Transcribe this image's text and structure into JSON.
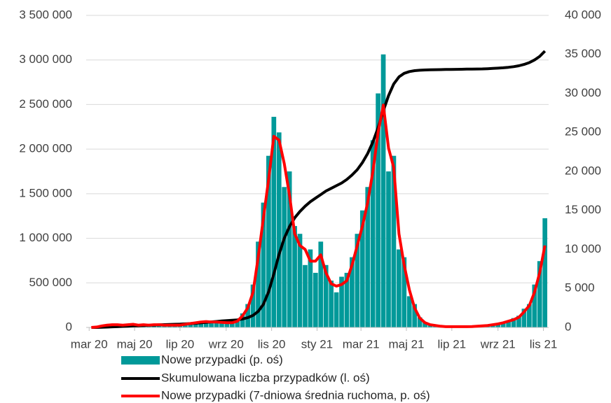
{
  "chart_data": {
    "type": "combo",
    "x": [
      3,
      10,
      17,
      24,
      31,
      38,
      45,
      52,
      59,
      66,
      73,
      80,
      87,
      94,
      101,
      108,
      115,
      122,
      129,
      136,
      143,
      150,
      157,
      164,
      171,
      178,
      185,
      192,
      199,
      206,
      213,
      220,
      227,
      234,
      241,
      248,
      255,
      262,
      269,
      276,
      283,
      290,
      297,
      304,
      311,
      318,
      325,
      332,
      339,
      346,
      353,
      360,
      367,
      374,
      381,
      388,
      395,
      402,
      409,
      416,
      423,
      430,
      437,
      444,
      451,
      458,
      465,
      472,
      479,
      486,
      493,
      500,
      507,
      514,
      521,
      528,
      535,
      542,
      549,
      556,
      563,
      570,
      577,
      584,
      591,
      598,
      605,
      612
    ],
    "xlim": [
      -4,
      617
    ],
    "xticks": [
      {
        "value": 0,
        "label": "mar 20"
      },
      {
        "value": 61,
        "label": "maj 20"
      },
      {
        "value": 122,
        "label": "lip 20"
      },
      {
        "value": 184,
        "label": "wrz 20"
      },
      {
        "value": 245,
        "label": "lis 20"
      },
      {
        "value": 306,
        "label": "sty 21"
      },
      {
        "value": 365,
        "label": "mar 21"
      },
      {
        "value": 426,
        "label": "maj 21"
      },
      {
        "value": 487,
        "label": "lip 21"
      },
      {
        "value": 549,
        "label": "wrz 21"
      },
      {
        "value": 610,
        "label": "lis 21"
      }
    ],
    "ylim": [
      0,
      3500000
    ],
    "yticks": [
      0,
      {
        "value": 500000,
        "label": "500 000"
      },
      {
        "value": 1000000,
        "label": "1 000 000"
      },
      {
        "value": 1500000,
        "label": "1 500 000"
      },
      {
        "value": 2000000,
        "label": "2 000 000"
      },
      {
        "value": 2500000,
        "label": "2 500 000"
      },
      {
        "value": 3000000,
        "label": "3 000 000"
      },
      {
        "value": 3500000,
        "label": "3 500 000"
      }
    ],
    "y2lim": [
      0,
      40000
    ],
    "y2ticks": [
      0,
      {
        "value": 5000,
        "label": "5 000"
      },
      {
        "value": 10000,
        "label": "10 000"
      },
      {
        "value": 15000,
        "label": "15 000"
      },
      {
        "value": 20000,
        "label": "20 000"
      },
      {
        "value": 25000,
        "label": "25 000"
      },
      {
        "value": 30000,
        "label": "30 000"
      },
      {
        "value": 35000,
        "label": "35 000"
      },
      {
        "value": 40000,
        "label": "40 000"
      }
    ],
    "grid": true,
    "legend": "bottom",
    "series": [
      {
        "name": "Nowe przypadki (p. oś)",
        "kind": "bar",
        "axis": "y2",
        "color": "#009999",
        "values": [
          0,
          100,
          250,
          350,
          400,
          300,
          350,
          400,
          450,
          250,
          400,
          350,
          300,
          400,
          250,
          350,
          300,
          350,
          450,
          600,
          700,
          800,
          900,
          600,
          800,
          700,
          500,
          700,
          1000,
          1800,
          3000,
          5500,
          11000,
          16000,
          22000,
          27000,
          25000,
          18000,
          20000,
          13000,
          12000,
          8000,
          10000,
          7000,
          11000,
          8000,
          6000,
          4500,
          6500,
          7000,
          9000,
          12000,
          15000,
          18000,
          24000,
          30000,
          35000,
          20000,
          22000,
          10000,
          9000,
          4000,
          3000,
          1300,
          700,
          300,
          300,
          200,
          100,
          100,
          150,
          100,
          100,
          150,
          200,
          250,
          300,
          400,
          500,
          700,
          900,
          1200,
          1500,
          2400,
          3000,
          5500,
          8500,
          14000
        ]
      },
      {
        "name": "Skumulowana liczba przypadków (l. oś)",
        "kind": "line",
        "axis": "y",
        "color": "#000000",
        "values": [
          0,
          0,
          2000,
          4000,
          7000,
          9000,
          12000,
          14000,
          17000,
          19000,
          22000,
          24000,
          26000,
          29000,
          31000,
          33000,
          35000,
          37000,
          40000,
          43000,
          47000,
          52000,
          57000,
          62000,
          67000,
          72000,
          76000,
          80000,
          85000,
          95000,
          110000,
          135000,
          180000,
          260000,
          400000,
          600000,
          820000,
          1000000,
          1130000,
          1230000,
          1300000,
          1360000,
          1410000,
          1450000,
          1490000,
          1530000,
          1560000,
          1590000,
          1620000,
          1660000,
          1710000,
          1770000,
          1850000,
          1950000,
          2080000,
          2240000,
          2430000,
          2600000,
          2730000,
          2810000,
          2850000,
          2870000,
          2880000,
          2885000,
          2888000,
          2890000,
          2891000,
          2892000,
          2893000,
          2894000,
          2895000,
          2896000,
          2897000,
          2898000,
          2899000,
          2900000,
          2902000,
          2905000,
          2908000,
          2912000,
          2918000,
          2925000,
          2935000,
          2950000,
          2970000,
          3000000,
          3040000,
          3100000
        ]
      },
      {
        "name": "Nowe przypadki (7-dniowa średnia ruchoma, p. oś)",
        "kind": "line",
        "axis": "y2",
        "color": "#ff0000",
        "values": [
          0,
          50,
          200,
          300,
          350,
          350,
          300,
          350,
          400,
          300,
          350,
          300,
          350,
          350,
          300,
          300,
          300,
          300,
          400,
          500,
          600,
          700,
          750,
          700,
          700,
          650,
          600,
          600,
          800,
          1500,
          2500,
          4500,
          9000,
          14000,
          19000,
          24500,
          24000,
          21000,
          17000,
          12000,
          10500,
          10000,
          8500,
          8500,
          9300,
          7000,
          5600,
          5300,
          5500,
          6000,
          8000,
          10500,
          13000,
          16000,
          20000,
          25000,
          28500,
          23000,
          20500,
          12000,
          8000,
          4800,
          2500,
          1200,
          600,
          350,
          250,
          150,
          100,
          100,
          100,
          100,
          100,
          120,
          150,
          200,
          250,
          350,
          450,
          600,
          800,
          1000,
          1300,
          2000,
          2800,
          4500,
          7000,
          10500
        ]
      }
    ]
  }
}
